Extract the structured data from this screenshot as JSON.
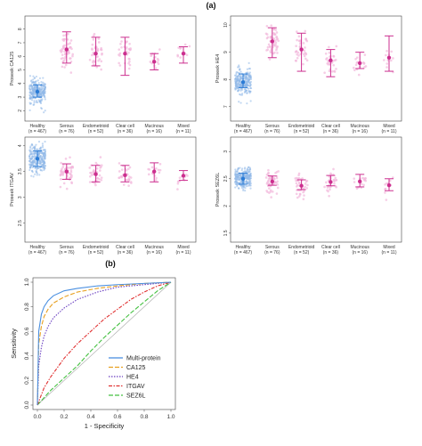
{
  "panel_labels": {
    "a": "(a)",
    "b": "(b)"
  },
  "chart_data": [
    {
      "type": "scatter",
      "panel": "a",
      "ylabel": "Proseek CA125",
      "ylim": [
        1.5,
        8.7
      ],
      "yticks": [
        2,
        3,
        4,
        5,
        6,
        7,
        8
      ],
      "categories": [
        "Healthy",
        "Serous",
        "Endometrioid",
        "Clear cell",
        "Mucinous",
        "Mixed"
      ],
      "counts": [
        "(n = 467)",
        "(n = 76)",
        "(n = 52)",
        "(n = 36)",
        "(n = 16)",
        "(n = 11)"
      ],
      "median": [
        3.4,
        6.5,
        6.2,
        6.2,
        5.6,
        6.2
      ],
      "lower": [
        3.0,
        5.5,
        5.3,
        4.6,
        5.0,
        5.5
      ],
      "upper": [
        3.9,
        7.8,
        7.4,
        7.4,
        6.2,
        6.7
      ],
      "spread": [
        0.9,
        1.1,
        1.1,
        1.2,
        0.8,
        0.8
      ]
    },
    {
      "type": "scatter",
      "panel": "a",
      "ylabel": "Proseek HE4",
      "ylim": [
        6.6,
        10.2
      ],
      "yticks": [
        7,
        8,
        9,
        10
      ],
      "categories": [
        "Healthy",
        "Serous",
        "Endometrioid",
        "Clear cell",
        "Mucinous",
        "Mixed"
      ],
      "counts": [
        "(n = 467)",
        "(n = 76)",
        "(n = 52)",
        "(n = 36)",
        "(n = 16)",
        "(n = 11)"
      ],
      "median": [
        7.9,
        9.4,
        9.1,
        8.7,
        8.6,
        8.8
      ],
      "lower": [
        7.7,
        8.8,
        8.3,
        8.1,
        8.4,
        8.3
      ],
      "upper": [
        8.2,
        9.9,
        9.7,
        9.1,
        9.0,
        9.6
      ],
      "spread": [
        0.45,
        0.6,
        0.65,
        0.5,
        0.4,
        0.5
      ]
    },
    {
      "type": "scatter",
      "panel": "a",
      "ylabel": "Proseek ITGAV",
      "ylim": [
        2.2,
        4.1
      ],
      "yticks": [
        2.5,
        3.0,
        3.5,
        4.0
      ],
      "categories": [
        "Healthy",
        "Serous",
        "Endometrioid",
        "Clear cell",
        "Mucinous",
        "Mixed"
      ],
      "counts": [
        "(n = 467)",
        "(n = 76)",
        "(n = 52)",
        "(n = 36)",
        "(n = 16)",
        "(n = 11)"
      ],
      "median": [
        3.75,
        3.5,
        3.45,
        3.43,
        3.5,
        3.42
      ],
      "lower": [
        3.6,
        3.35,
        3.3,
        3.3,
        3.3,
        3.33
      ],
      "upper": [
        3.9,
        3.65,
        3.62,
        3.62,
        3.67,
        3.52
      ],
      "spread": [
        0.3,
        0.25,
        0.25,
        0.25,
        0.2,
        0.2
      ]
    },
    {
      "type": "scatter",
      "panel": "a",
      "ylabel": "Proseek SEZ6L",
      "ylim": [
        1.4,
        3.2
      ],
      "yticks": [
        1.5,
        2.0,
        2.5,
        3.0
      ],
      "categories": [
        "Healthy",
        "Serous",
        "Endometrioid",
        "Clear cell",
        "Mucinous",
        "Mixed"
      ],
      "counts": [
        "(n = 467)",
        "(n = 76)",
        "(n = 52)",
        "(n = 36)",
        "(n = 16)",
        "(n = 11)"
      ],
      "median": [
        2.5,
        2.45,
        2.37,
        2.44,
        2.45,
        2.38
      ],
      "lower": [
        2.4,
        2.38,
        2.3,
        2.37,
        2.35,
        2.28
      ],
      "upper": [
        2.6,
        2.55,
        2.48,
        2.56,
        2.58,
        2.5
      ],
      "spread": [
        0.2,
        0.2,
        0.2,
        0.2,
        0.2,
        0.2
      ]
    },
    {
      "type": "line",
      "panel": "b",
      "xlabel": "1 - Specificity",
      "ylabel": "Sensitivity",
      "xlim": [
        0,
        1
      ],
      "ylim": [
        0,
        1
      ],
      "xticks": [
        "0.0",
        "0.2",
        "0.4",
        "0.6",
        "0.8",
        "1.0"
      ],
      "yticks": [
        "0.0",
        "0.2",
        "0.4",
        "0.6",
        "0.8",
        "1.0"
      ],
      "diagonal_reference": true,
      "legend_position": "bottom-right",
      "series": [
        {
          "name": "Multi-protein",
          "color": "#4a8fe0",
          "dash": "",
          "x": [
            0,
            0.01,
            0.03,
            0.05,
            0.08,
            0.12,
            0.2,
            0.3,
            0.45,
            0.6,
            0.8,
            1.0
          ],
          "y": [
            0,
            0.6,
            0.74,
            0.8,
            0.85,
            0.89,
            0.93,
            0.95,
            0.97,
            0.98,
            0.99,
            1.0
          ]
        },
        {
          "name": "CA125",
          "color": "#e8a020",
          "dash": "5,2",
          "x": [
            0,
            0.01,
            0.03,
            0.05,
            0.08,
            0.12,
            0.2,
            0.3,
            0.45,
            0.6,
            0.8,
            1.0
          ],
          "y": [
            0,
            0.5,
            0.64,
            0.72,
            0.78,
            0.83,
            0.88,
            0.92,
            0.95,
            0.97,
            0.99,
            1.0
          ]
        },
        {
          "name": "HE4",
          "color": "#6a3fc0",
          "dash": "1.5,1.5",
          "x": [
            0,
            0.01,
            0.03,
            0.05,
            0.08,
            0.12,
            0.2,
            0.3,
            0.45,
            0.6,
            0.8,
            1.0
          ],
          "y": [
            0,
            0.32,
            0.47,
            0.56,
            0.64,
            0.71,
            0.79,
            0.86,
            0.92,
            0.96,
            0.98,
            1.0
          ]
        },
        {
          "name": "ITGAV",
          "color": "#e03030",
          "dash": "4,1.5,1.5,1.5",
          "x": [
            0,
            0.05,
            0.1,
            0.2,
            0.3,
            0.4,
            0.5,
            0.6,
            0.7,
            0.8,
            0.9,
            1.0
          ],
          "y": [
            0,
            0.14,
            0.23,
            0.38,
            0.5,
            0.6,
            0.7,
            0.78,
            0.86,
            0.92,
            0.97,
            1.0
          ]
        },
        {
          "name": "SEZ6L",
          "color": "#44c040",
          "dash": "5,2",
          "x": [
            0,
            0.05,
            0.1,
            0.2,
            0.3,
            0.4,
            0.5,
            0.6,
            0.7,
            0.8,
            0.9,
            1.0
          ],
          "y": [
            0,
            0.06,
            0.12,
            0.22,
            0.32,
            0.44,
            0.55,
            0.65,
            0.75,
            0.84,
            0.93,
            1.0
          ]
        }
      ]
    }
  ],
  "colors": {
    "healthy": "#2a7bd6",
    "cancer": "#cc2f8f",
    "healthy_dots": "#8fb8e8",
    "cancer_dots": "#f2b8dc"
  }
}
